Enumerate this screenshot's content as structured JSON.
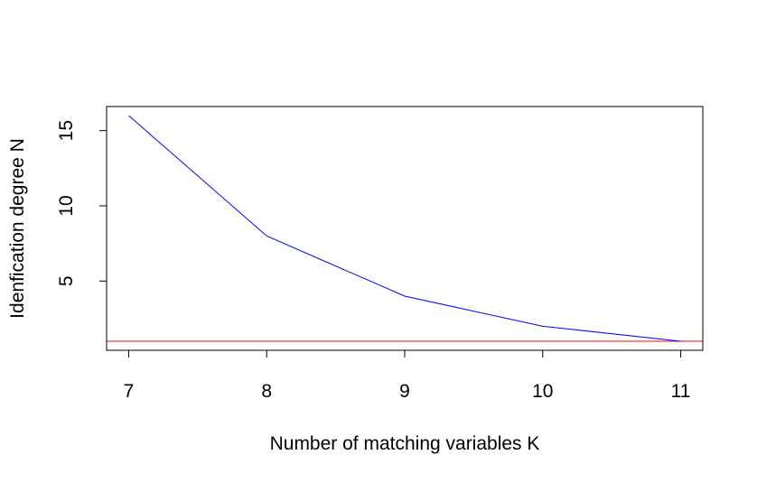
{
  "chart_data": {
    "type": "line",
    "title": "",
    "xlabel": "Number of matching variables K",
    "ylabel": "Idenfication degree N",
    "x": [
      7,
      8,
      9,
      10,
      11
    ],
    "series": [
      {
        "values": [
          16,
          8,
          4,
          2,
          1
        ],
        "color": "#0000ff"
      }
    ],
    "reference_lines": [
      {
        "axis": "y",
        "value": 1,
        "color": "#ff0000"
      }
    ],
    "x_ticks": [
      7,
      8,
      9,
      10,
      11
    ],
    "y_ticks": [
      5,
      10,
      15
    ],
    "xlim": [
      6.84,
      11.16
    ],
    "ylim": [
      0.4,
      16.6
    ],
    "grid": false,
    "legend": "none"
  }
}
